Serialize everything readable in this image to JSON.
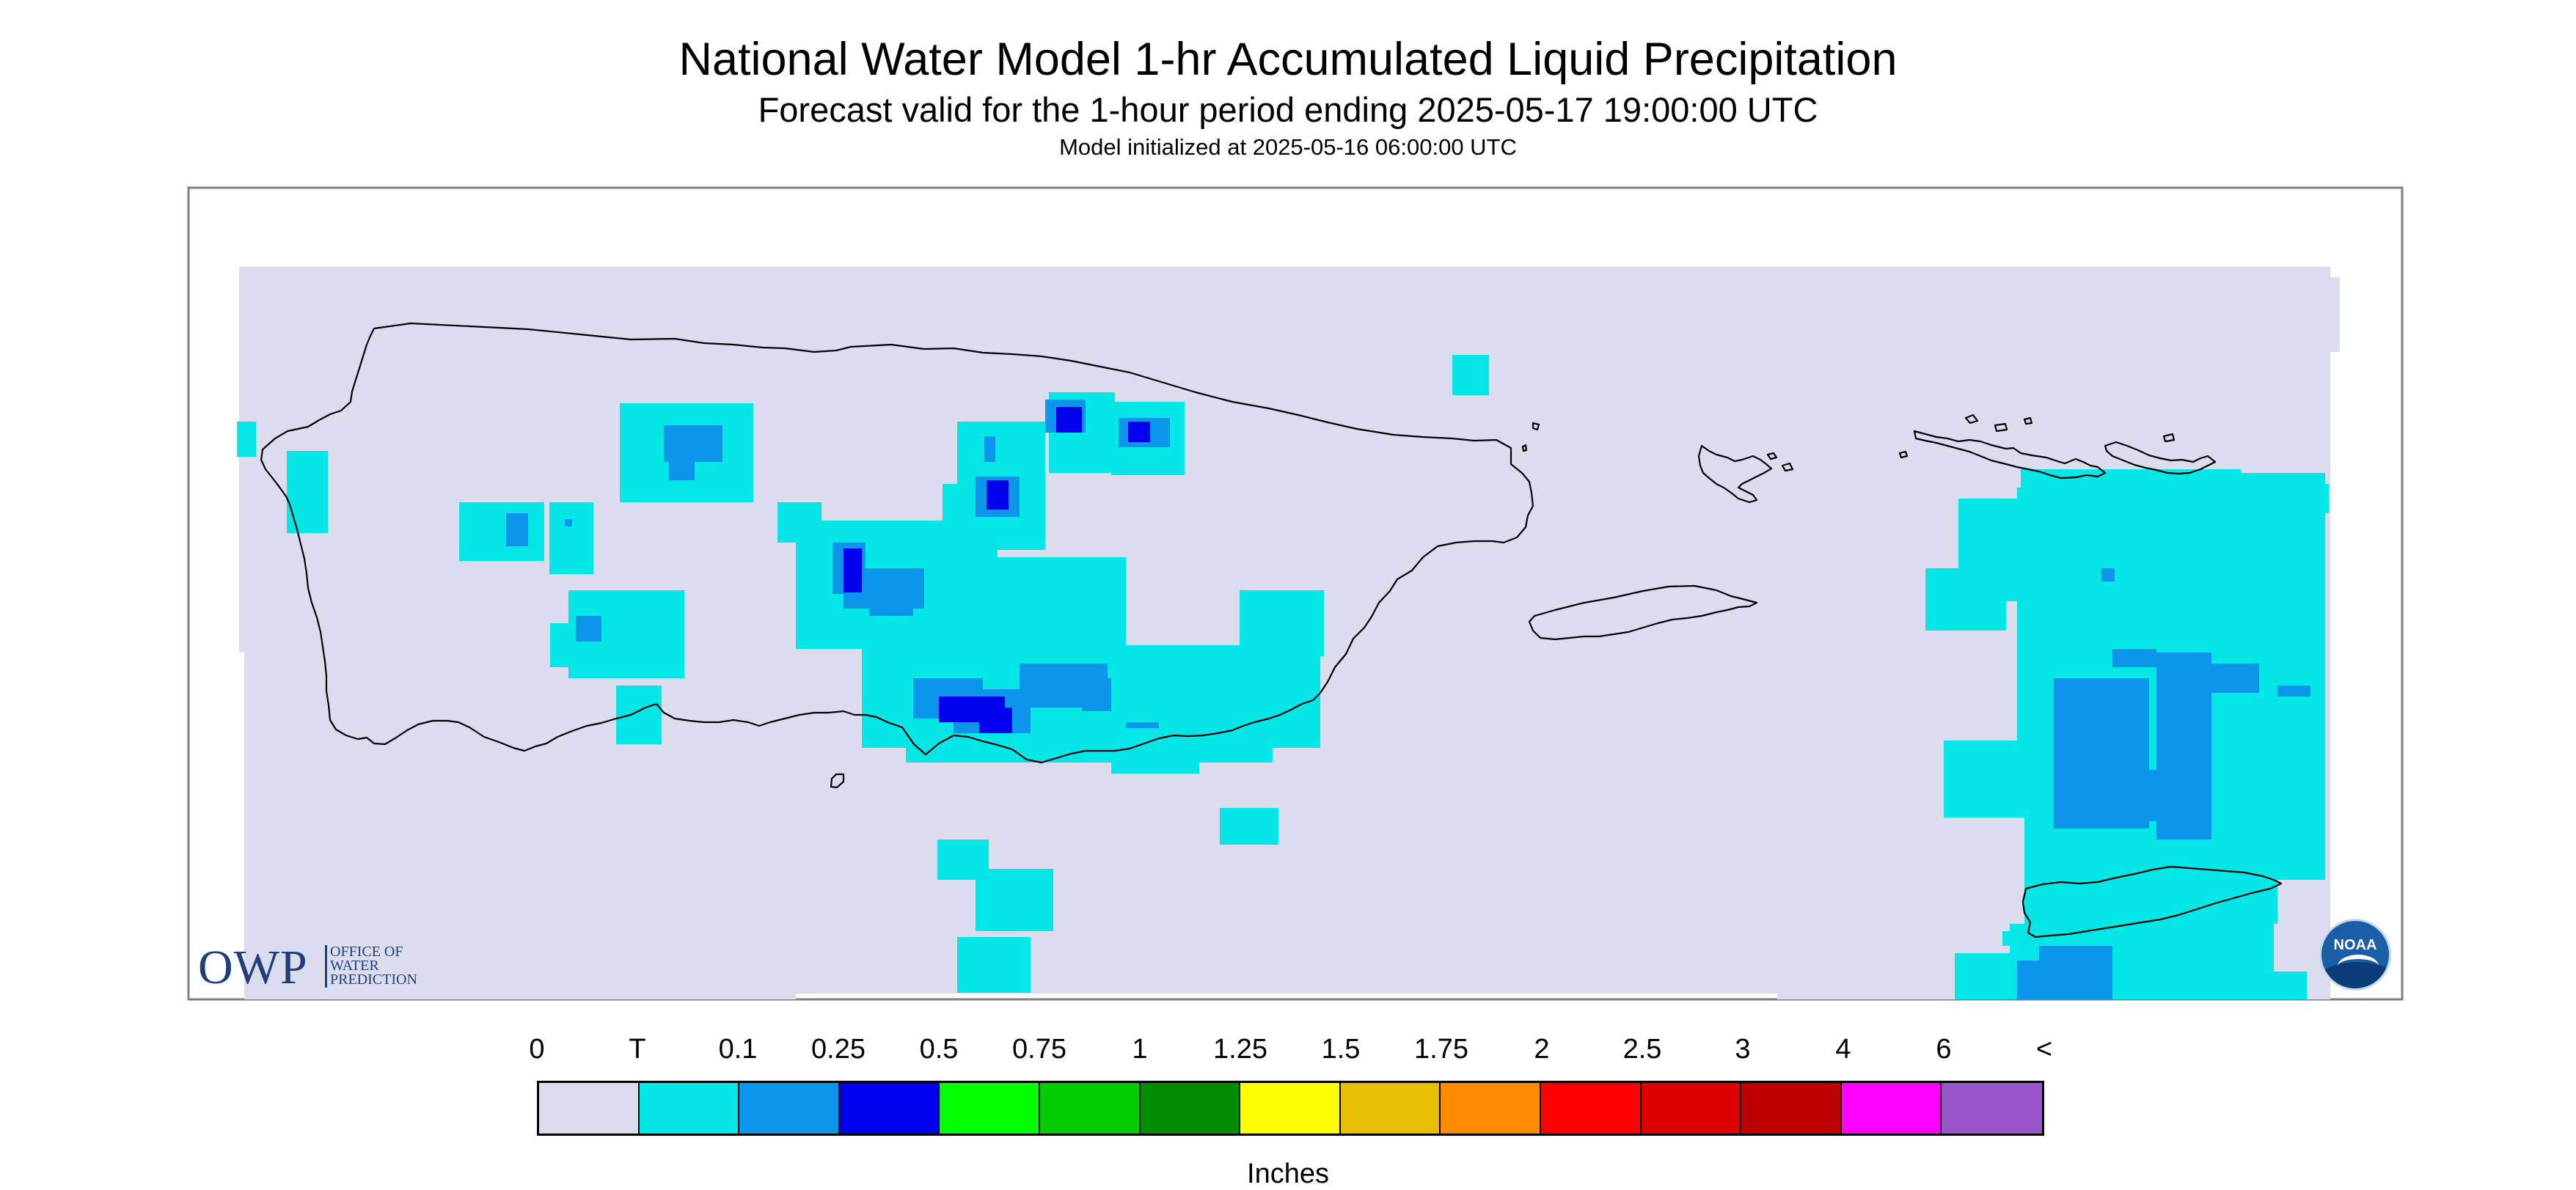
{
  "title": "National Water Model 1-hr Accumulated Liquid Precipitation",
  "subtitle": "Forecast valid for the 1-hour period ending 2025-05-17 19:00:00 UTC",
  "model_init": "Model initialized at 2025-05-16 06:00:00 UTC",
  "logos": {
    "owp_big": "OWP",
    "owp_small": [
      "OFFICE OF",
      "WATER",
      "PREDICTION"
    ],
    "noaa": "NOAA"
  },
  "legend": {
    "units": "Inches",
    "ticks": [
      "0",
      "T",
      "0.1",
      "0.25",
      "0.5",
      "0.75",
      "1",
      "1.25",
      "1.5",
      "1.75",
      "2",
      "2.5",
      "3",
      "4",
      "6",
      "<"
    ],
    "colors": [
      "#dbdcee",
      "#05e6e6",
      "#0b96ec",
      "#0000ee",
      "#00ff00",
      "#00cc00",
      "#008e00",
      "#ffff00",
      "#e6bd00",
      "#ff8c00",
      "#ff0000",
      "#de0000",
      "#be0000",
      "#ff00ff",
      "#9955c9"
    ]
  },
  "map_colors": {
    "background": "#dbdcee",
    "frame": "#7f7f7f",
    "trace": "#05e6e6",
    "p01": "#0b96ec",
    "p025": "#0000ee",
    "coast": "#000000"
  }
}
